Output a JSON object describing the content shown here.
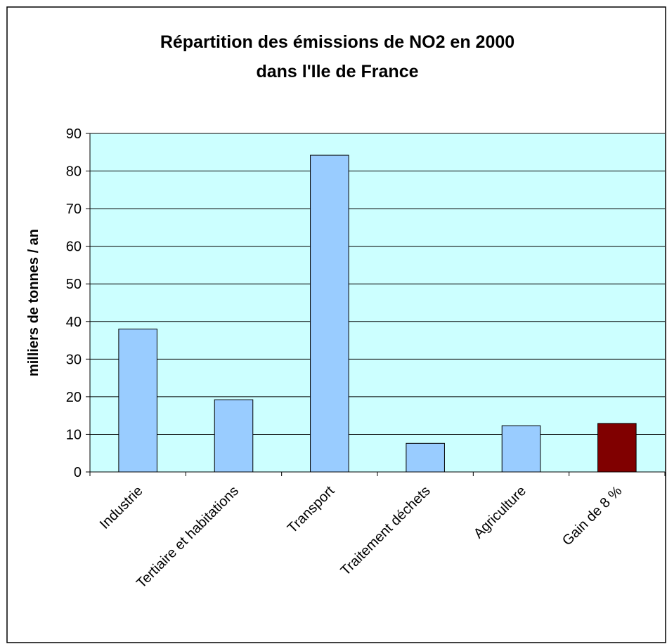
{
  "chart_data": {
    "type": "bar",
    "title": [
      "Répartition des émissions de NO2 en 2000",
      "dans l'Ile de France"
    ],
    "y_label": "milliers de tonnes / an",
    "categories": [
      "Industrie",
      "Tertiaire et habitations",
      "Transport",
      "Traitement déchets",
      "Agriculture",
      "Gain de 8 %"
    ],
    "values": [
      38,
      19.2,
      84.2,
      7.6,
      12.3,
      12.9
    ],
    "colors": [
      "#99ccff",
      "#99ccff",
      "#99ccff",
      "#99ccff",
      "#99ccff",
      "#800000"
    ],
    "ylim": [
      0,
      90
    ],
    "yticks": [
      0,
      10,
      20,
      30,
      40,
      50,
      60,
      70,
      80,
      90
    ],
    "grid": true
  }
}
